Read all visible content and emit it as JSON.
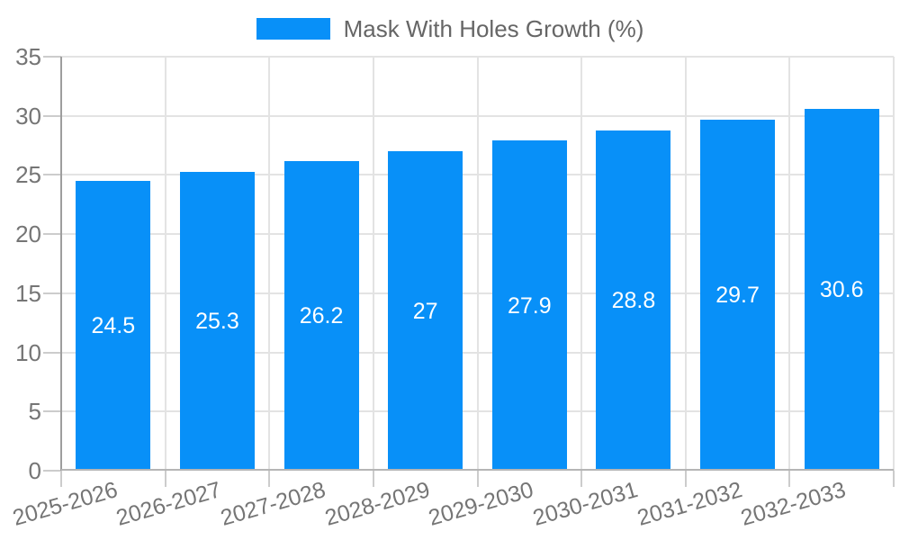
{
  "chart_data": {
    "type": "bar",
    "title": "Mask With Holes Growth (%)",
    "categories": [
      "2025-2026",
      "2026-2027",
      "2027-2028",
      "2028-2029",
      "2029-2030",
      "2030-2031",
      "2031-2032",
      "2032-2033"
    ],
    "values": [
      24.5,
      25.3,
      26.2,
      27,
      27.9,
      28.8,
      29.7,
      30.6
    ],
    "value_labels": [
      "24.5",
      "25.3",
      "26.2",
      "27",
      "27.9",
      "28.8",
      "29.7",
      "30.6"
    ],
    "xlabel": "",
    "ylabel": "",
    "ylim": [
      0,
      35
    ],
    "ytick_step": 5,
    "ytick_labels": [
      "0",
      "5",
      "10",
      "15",
      "20",
      "25",
      "30",
      "35"
    ],
    "grid": true,
    "legend_position": "top-center",
    "x_label_rotation_deg": -16
  },
  "colors": {
    "bar": "#0890F8",
    "grid": "#E3E3E3",
    "y_axis_line": "#9E9E9E",
    "x_axis_line": "#B5B5B5",
    "tick": "#CCCCCC",
    "axis_label": "#757575",
    "legend_text": "#666666",
    "value_label": "#FFFFFF",
    "background": "#FFFFFF"
  }
}
